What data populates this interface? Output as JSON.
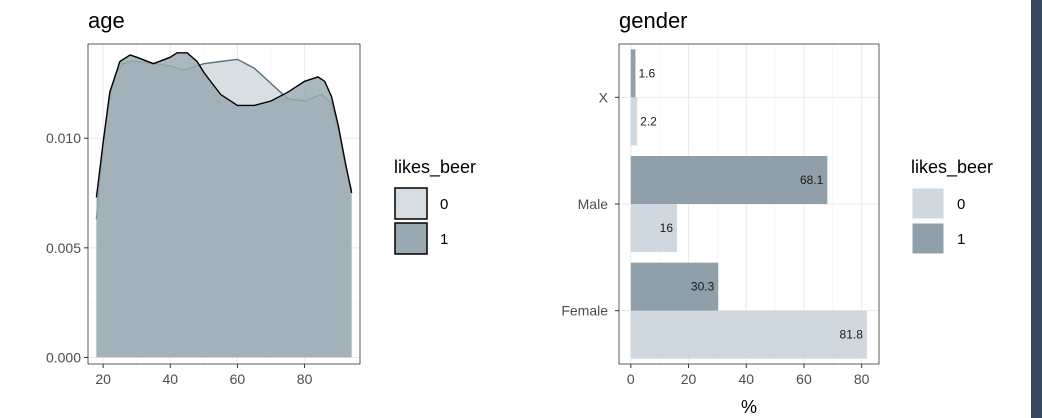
{
  "colors": {
    "fill_0": "#d0d8df",
    "fill_1": "#8fa0aa",
    "density_0_fill": "#d6dde2",
    "density_1_fill": "#9aaab3",
    "outline": "#000000",
    "side_strip": "#34495e"
  },
  "chart_data": [
    {
      "type": "area",
      "title": "age",
      "xlabel": "",
      "ylabel": "",
      "xlim": [
        15.5,
        96.5
      ],
      "ylim": [
        -0.0003,
        0.0143
      ],
      "x_ticks": [
        20,
        40,
        60,
        80
      ],
      "y_ticks": [
        0.0,
        0.005,
        0.01
      ],
      "y_tick_labels": [
        "0.000",
        "0.005",
        "0.010"
      ],
      "grid": true,
      "legend": {
        "title": "likes_beer",
        "position": "right",
        "entries": [
          "0",
          "1"
        ]
      },
      "series": [
        {
          "name": "0",
          "x": [
            18,
            20,
            22,
            24,
            26,
            28,
            30,
            35,
            40,
            44,
            46,
            50,
            55,
            60,
            65,
            70,
            75,
            80,
            85,
            88,
            90,
            92,
            94
          ],
          "y": [
            0.0063,
            0.0097,
            0.0119,
            0.013,
            0.0134,
            0.0135,
            0.0135,
            0.0134,
            0.0133,
            0.0131,
            0.0132,
            0.0134,
            0.0135,
            0.0136,
            0.0132,
            0.0125,
            0.0118,
            0.0117,
            0.012,
            0.0116,
            0.0104,
            0.0088,
            0.0076
          ]
        },
        {
          "name": "1",
          "x": [
            18,
            20,
            22,
            25,
            28,
            30,
            35,
            40,
            42,
            45,
            48,
            50,
            55,
            60,
            65,
            70,
            75,
            80,
            84,
            86,
            88,
            90,
            92,
            94
          ],
          "y": [
            0.0073,
            0.0098,
            0.0121,
            0.0135,
            0.0138,
            0.0137,
            0.0134,
            0.0137,
            0.0139,
            0.0139,
            0.0135,
            0.013,
            0.012,
            0.0115,
            0.0115,
            0.0117,
            0.0121,
            0.0126,
            0.0128,
            0.0126,
            0.0119,
            0.0106,
            0.009,
            0.0075
          ]
        }
      ]
    },
    {
      "type": "bar",
      "orientation": "horizontal",
      "title": "gender",
      "xlabel": "%",
      "ylabel": "",
      "xlim": [
        -4.1,
        86.0
      ],
      "x_ticks": [
        0,
        20,
        40,
        60,
        80
      ],
      "grid": true,
      "categories": [
        "Female",
        "Male",
        "X"
      ],
      "legend": {
        "title": "likes_beer",
        "position": "right",
        "entries": [
          "0",
          "1"
        ]
      },
      "series": [
        {
          "name": "0",
          "values": [
            81.8,
            16,
            2.2
          ],
          "labels": [
            "81.8",
            "16",
            "2.2"
          ]
        },
        {
          "name": "1",
          "values": [
            30.3,
            68.1,
            1.6
          ],
          "labels": [
            "30.3",
            "68.1",
            "1.6"
          ]
        }
      ]
    }
  ]
}
